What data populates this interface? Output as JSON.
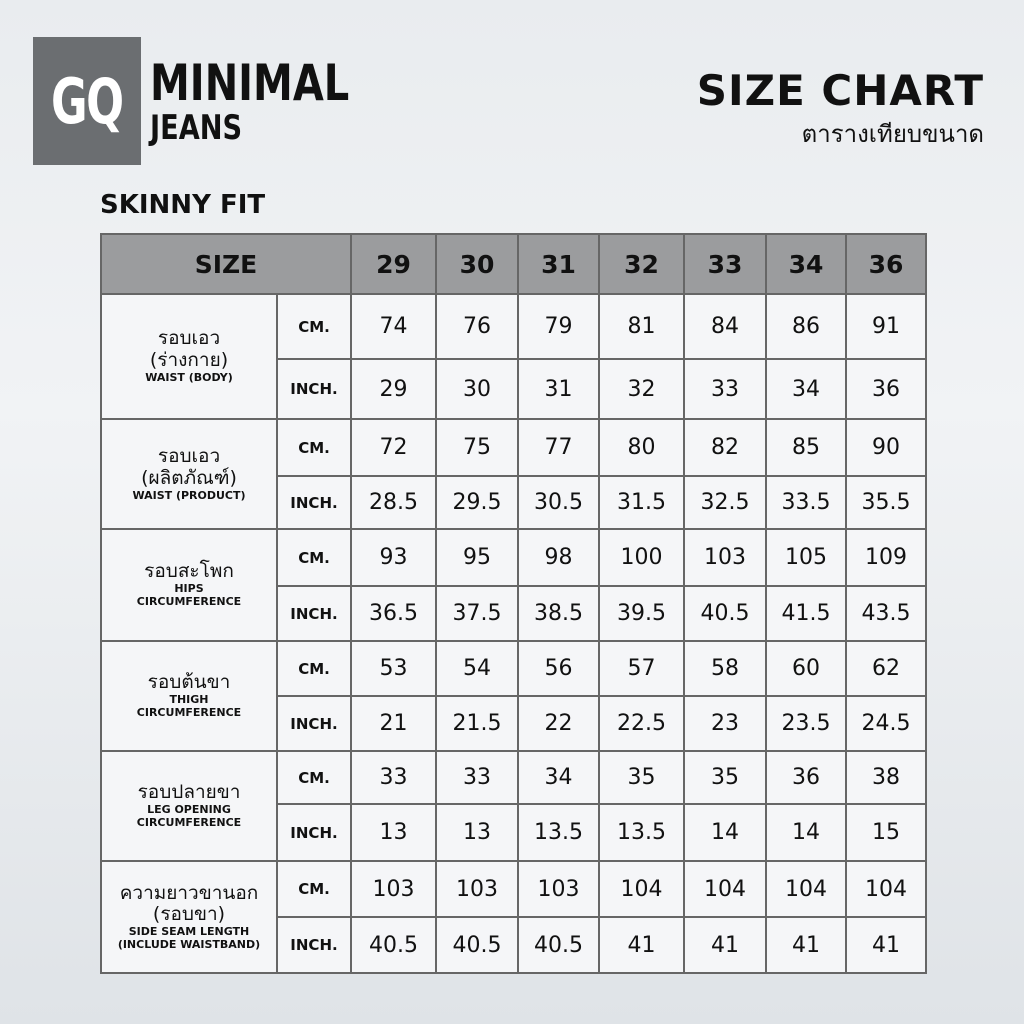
{
  "header": {
    "logo": "GQ",
    "brand": [
      "MINIMAL",
      "JEANS"
    ],
    "title": "SIZE CHART",
    "subtitle": "ตารางเทียบขนาด"
  },
  "section": "SKINNY FIT",
  "table": {
    "size_label": "SIZE",
    "sizes": [
      29,
      30,
      31,
      32,
      33,
      34,
      36
    ],
    "units": [
      "CM.",
      "INCH."
    ],
    "rows": [
      {
        "label_th": [
          "รอบเอว",
          "(ร่างกาย)"
        ],
        "label_en": [
          "WAIST (BODY)"
        ],
        "cm": [
          74,
          76,
          79,
          81,
          84,
          86,
          91
        ],
        "inch": [
          29,
          30,
          31,
          32,
          33,
          34,
          36
        ]
      },
      {
        "label_th": [
          "รอบเอว",
          "(ผลิตภัณฑ์)"
        ],
        "label_en": [
          "WAIST (PRODUCT)"
        ],
        "cm": [
          72,
          75,
          77,
          80,
          82,
          85,
          90
        ],
        "inch": [
          28.5,
          29.5,
          30.5,
          31.5,
          32.5,
          33.5,
          35.5
        ]
      },
      {
        "label_th": [
          "รอบสะโพก"
        ],
        "label_en": [
          "HIPS",
          "CIRCUMFERENCE"
        ],
        "cm": [
          93,
          95,
          98,
          100,
          103,
          105,
          109
        ],
        "inch": [
          36.5,
          37.5,
          38.5,
          39.5,
          40.5,
          41.5,
          43.5
        ]
      },
      {
        "label_th": [
          "รอบต้นขา"
        ],
        "label_en": [
          "THIGH",
          "CIRCUMFERENCE"
        ],
        "cm": [
          53,
          54,
          56,
          57,
          58,
          60,
          62
        ],
        "inch": [
          21,
          21.5,
          22,
          22.5,
          23,
          23.5,
          24.5
        ]
      },
      {
        "label_th": [
          "รอบปลายขา"
        ],
        "label_en": [
          "LEG OPENING",
          "CIRCUMFERENCE"
        ],
        "cm": [
          33,
          33,
          34,
          35,
          35,
          36,
          38
        ],
        "inch": [
          13,
          13,
          13.5,
          13.5,
          14,
          14,
          15
        ]
      },
      {
        "label_th": [
          "ความยาวขานอก",
          "(รอบขา)"
        ],
        "label_en": [
          "SIDE SEAM LENGTH",
          "(INCLUDE WAISTBAND)"
        ],
        "cm": [
          103,
          103,
          103,
          104,
          104,
          104,
          104
        ],
        "inch": [
          40.5,
          40.5,
          40.5,
          41,
          41,
          41,
          41
        ]
      }
    ]
  }
}
